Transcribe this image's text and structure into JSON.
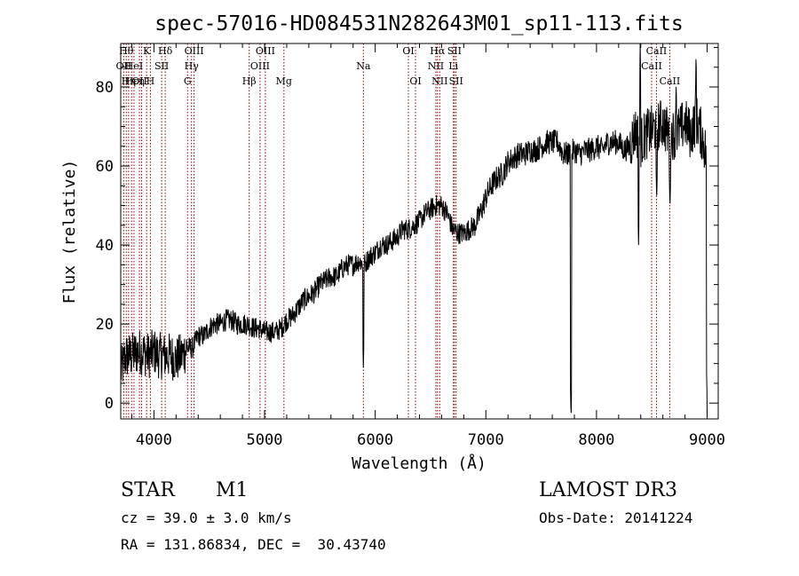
{
  "chart_data": {
    "type": "line",
    "title": "spec-57016-HD084531N282643M01_sp11-113.fits",
    "xlabel": "Wavelength (Å)",
    "ylabel": "Flux (relative)",
    "xlim": [
      3700,
      9100
    ],
    "ylim": [
      -4,
      91
    ],
    "xticks": [
      "4000",
      "5000",
      "6000",
      "7000",
      "8000",
      "9000"
    ],
    "yticks": [
      "0",
      "20",
      "40",
      "60",
      "80"
    ],
    "xtick_values": [
      4000,
      5000,
      6000,
      7000,
      8000,
      9000
    ],
    "ytick_values": [
      0,
      20,
      40,
      60,
      80
    ],
    "grid": false,
    "line_color": "#000000",
    "marker_color": "#8b0000",
    "spectrum_anchors": {
      "x": [
        3700,
        3750,
        3800,
        3850,
        3900,
        3950,
        4000,
        4050,
        4100,
        4150,
        4200,
        4250,
        4300,
        4350,
        4400,
        4450,
        4500,
        4550,
        4600,
        4650,
        4700,
        4750,
        4800,
        4850,
        4900,
        4950,
        5000,
        5050,
        5100,
        5150,
        5200,
        5250,
        5300,
        5350,
        5400,
        5450,
        5500,
        5550,
        5600,
        5650,
        5700,
        5750,
        5800,
        5850,
        5900,
        5950,
        6000,
        6050,
        6100,
        6150,
        6200,
        6250,
        6300,
        6350,
        6400,
        6450,
        6500,
        6550,
        6600,
        6650,
        6700,
        6750,
        6800,
        6850,
        6900,
        6950,
        7000,
        7050,
        7100,
        7150,
        7200,
        7250,
        7300,
        7350,
        7400,
        7450,
        7500,
        7550,
        7600,
        7650,
        7700,
        7750,
        7800,
        7850,
        7900,
        7950,
        8000,
        8050,
        8100,
        8150,
        8200,
        8250,
        8300,
        8350,
        8400,
        8450,
        8500,
        8550,
        8600,
        8650,
        8700,
        8750,
        8800,
        8850,
        8900,
        8950,
        9000
      ],
      "y": [
        8,
        12,
        12,
        13,
        13,
        12,
        13,
        12,
        12,
        12,
        11,
        12,
        14,
        14,
        17,
        17,
        19,
        20,
        20,
        21,
        21,
        20,
        20,
        20,
        19,
        19,
        18,
        18,
        18,
        19,
        21,
        22,
        24,
        26,
        27,
        28,
        30,
        31,
        32,
        32,
        34,
        35,
        35,
        36,
        35,
        37,
        38,
        40,
        40,
        41,
        42,
        44,
        44,
        45,
        46,
        48,
        49,
        50,
        50,
        48,
        44,
        43,
        43,
        44,
        45,
        48,
        52,
        55,
        57,
        58,
        61,
        62,
        63,
        63,
        64,
        64,
        65,
        66,
        66,
        66,
        63,
        63,
        64,
        63,
        64,
        64,
        65,
        64,
        66,
        66,
        66,
        64,
        65,
        69,
        66,
        68,
        69,
        70,
        71,
        68,
        68,
        69,
        71,
        68,
        72,
        68,
        62
      ]
    },
    "spikes": [
      {
        "x": 5893,
        "y": 9
      },
      {
        "x": 7770,
        "y": -4
      },
      {
        "x": 8380,
        "y": 40
      },
      {
        "x": 8544,
        "y": 51
      },
      {
        "x": 8664,
        "y": 49
      },
      {
        "x": 9000,
        "y": 0
      }
    ],
    "peaks": [
      {
        "x": 8395,
        "y": 91
      },
      {
        "x": 8900,
        "y": 89
      },
      {
        "x": 8720,
        "y": 82
      }
    ],
    "lines": [
      {
        "x": 3727,
        "label": "OII",
        "row": 2
      },
      {
        "x": 3750,
        "label": "Hθ",
        "row": 1
      },
      {
        "x": 3771,
        "label": "Hη",
        "row": 3
      },
      {
        "x": 3798,
        "label": "Hε",
        "row": 3
      },
      {
        "x": 3820,
        "label": "HeI",
        "row": 2
      },
      {
        "x": 3869,
        "label": "OII",
        "row": 3
      },
      {
        "x": 3889,
        "label": "η",
        "row": 3
      },
      {
        "x": 3934,
        "label": "K",
        "row": 1
      },
      {
        "x": 3968,
        "label": "H",
        "row": 3
      },
      {
        "x": 4070,
        "label": "SII",
        "row": 2
      },
      {
        "x": 4102,
        "label": "Hδ",
        "row": 1
      },
      {
        "x": 4304,
        "label": "G",
        "row": 3
      },
      {
        "x": 4340,
        "label": "Hγ",
        "row": 2
      },
      {
        "x": 4363,
        "label": "OIII",
        "row": 1
      },
      {
        "x": 4861,
        "label": "Hβ",
        "row": 3
      },
      {
        "x": 4959,
        "label": "OIII",
        "row": 2
      },
      {
        "x": 5007,
        "label": "OIII",
        "row": 1
      },
      {
        "x": 5175,
        "label": "Mg",
        "row": 3
      },
      {
        "x": 5893,
        "label": "Na",
        "row": 2
      },
      {
        "x": 6300,
        "label": "OI",
        "row": 1
      },
      {
        "x": 6364,
        "label": "OI",
        "row": 3
      },
      {
        "x": 6548,
        "label": "NII",
        "row": 2
      },
      {
        "x": 6563,
        "label": "Hα",
        "row": 1
      },
      {
        "x": 6583,
        "label": "NII",
        "row": 3
      },
      {
        "x": 6707,
        "label": "Li",
        "row": 2
      },
      {
        "x": 6716,
        "label": "SII",
        "row": 1
      },
      {
        "x": 6731,
        "label": "SII",
        "row": 3
      },
      {
        "x": 8498,
        "label": "CaII",
        "row": 2
      },
      {
        "x": 8542,
        "label": "CaII",
        "row": 1
      },
      {
        "x": 8662,
        "label": "CaII",
        "row": 3
      }
    ]
  },
  "info": {
    "object_class": "STAR",
    "subclass": "M1",
    "survey": "LAMOST DR3",
    "cz": "cz = 39.0 ± 3.0 km/s",
    "obs_date": "Obs-Date: 20141224",
    "coords": "RA = 131.86834, DEC =  30.43740"
  }
}
